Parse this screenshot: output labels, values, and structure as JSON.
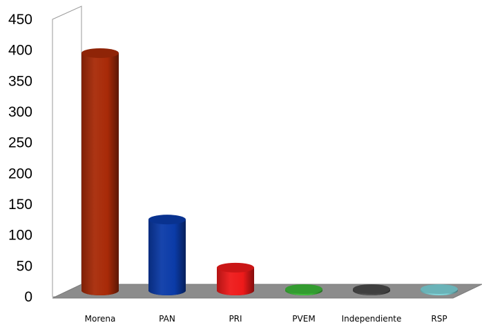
{
  "chart_data": {
    "type": "bar",
    "style": "3d-cylinder",
    "title": "",
    "xlabel": "",
    "ylabel": "",
    "ylim": [
      0,
      450
    ],
    "yticks": [
      "0",
      "50",
      "100",
      "150",
      "200",
      "250",
      "300",
      "350",
      "400",
      "450"
    ],
    "categories": [
      "Morena",
      "PAN",
      "PRI",
      "PVEM",
      "Independiente",
      "RSP"
    ],
    "values": [
      403,
      133,
      55,
      7,
      4,
      1
    ],
    "colors": [
      "#a82a08",
      "#0b3ba8",
      "#ee1a1a",
      "#3cb838",
      "#4a4a4a",
      "#7dd3d8"
    ],
    "grid": false,
    "legend": "none"
  }
}
